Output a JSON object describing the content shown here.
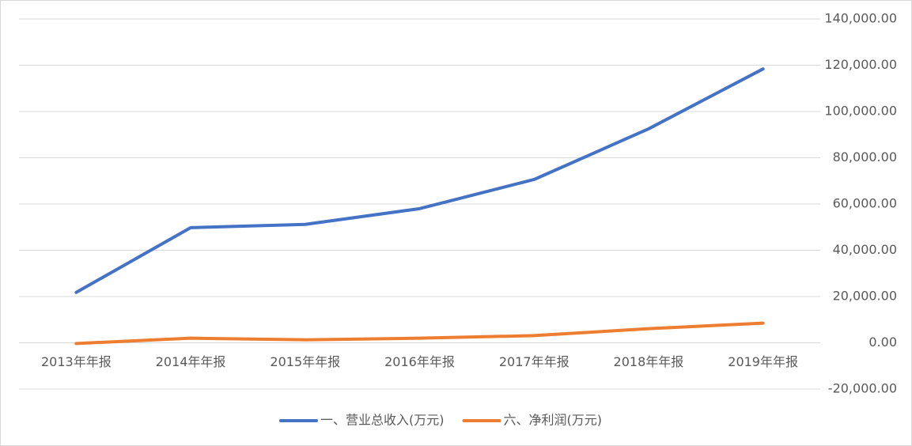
{
  "chart_data": {
    "type": "line",
    "categories": [
      "2013年年报",
      "2014年年报",
      "2015年年报",
      "2016年年报",
      "2017年年报",
      "2018年年报",
      "2019年年报"
    ],
    "series": [
      {
        "name": "一、营业总收入(万元)",
        "color": "#4472c4",
        "values": [
          21800,
          49800,
          51200,
          58000,
          70600,
          92500,
          118400
        ]
      },
      {
        "name": "六、净利润(万元)",
        "color": "#ed7d31",
        "values": [
          -300,
          2000,
          1300,
          2000,
          3100,
          6100,
          8500
        ]
      }
    ],
    "ylim": [
      -20000,
      140000
    ],
    "yticks": [
      {
        "value": -20000,
        "label": "-20,000.00"
      },
      {
        "value": 0,
        "label": "0.00"
      },
      {
        "value": 20000,
        "label": "20,000.00"
      },
      {
        "value": 40000,
        "label": "40,000.00"
      },
      {
        "value": 60000,
        "label": "60,000.00"
      },
      {
        "value": 80000,
        "label": "80,000.00"
      },
      {
        "value": 100000,
        "label": "100,000.00"
      },
      {
        "value": 120000,
        "label": "120,000.00"
      },
      {
        "value": 140000,
        "label": "140,000.00"
      }
    ],
    "grid": true,
    "legend": "bottom"
  }
}
